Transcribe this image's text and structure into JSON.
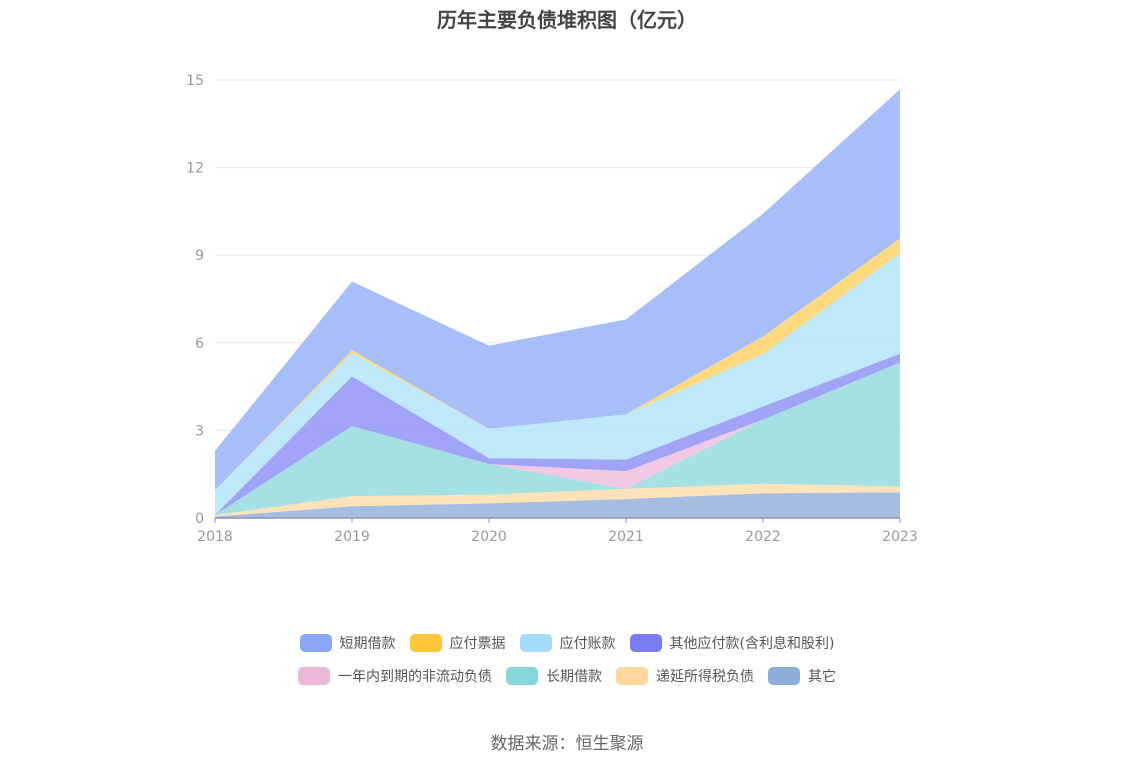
{
  "chart_data": {
    "type": "area",
    "stacked": true,
    "title": "历年主要负债堆积图（亿元）",
    "x": [
      "2018",
      "2019",
      "2020",
      "2021",
      "2022",
      "2023"
    ],
    "ylim": [
      0,
      15
    ],
    "yticks": [
      0,
      3,
      6,
      9,
      12,
      15
    ],
    "grid": true,
    "legend_position": "bottom",
    "series": [
      {
        "name": "其它",
        "color": "#8fadda",
        "values": [
          0.05,
          0.4,
          0.5,
          0.65,
          0.85,
          0.88
        ]
      },
      {
        "name": "递延所得税负债",
        "color": "#ffdba6",
        "values": [
          0.05,
          0.35,
          0.3,
          0.35,
          0.32,
          0.2
        ]
      },
      {
        "name": "长期借款",
        "color": "#8fdadc",
        "values": [
          0.0,
          2.4,
          1.05,
          0.0,
          2.2,
          4.25
        ]
      },
      {
        "name": "一年内到期的非流动负债",
        "color": "#eebcdc",
        "values": [
          0.0,
          0.0,
          0.0,
          0.6,
          0.0,
          0.0
        ]
      },
      {
        "name": "其他应付款(含利息和股利)",
        "color": "#8a8cf4",
        "values": [
          0.0,
          1.7,
          0.2,
          0.4,
          0.45,
          0.3
        ]
      },
      {
        "name": "应付账款",
        "color": "#ace3fa",
        "values": [
          0.85,
          0.8,
          1.0,
          1.55,
          1.8,
          3.45
        ]
      },
      {
        "name": "应付票据",
        "color": "#ffcf5c",
        "values": [
          0.0,
          0.1,
          0.0,
          0.0,
          0.6,
          0.5
        ]
      },
      {
        "name": "短期借款",
        "color": "#91aef9",
        "values": [
          1.35,
          2.35,
          2.85,
          3.25,
          4.2,
          5.1
        ]
      }
    ]
  },
  "legend": {
    "row1": [
      {
        "label": "短期借款",
        "color": "#8aa7f8"
      },
      {
        "label": "应付票据",
        "color": "#fcc53a"
      },
      {
        "label": "应付账款",
        "color": "#a4dcf9"
      },
      {
        "label": "其他应付款(含利息和股利)",
        "color": "#7a7cf2"
      }
    ],
    "row2": [
      {
        "label": "一年内到期的非流动负债",
        "color": "#ebb8da"
      },
      {
        "label": "长期借款",
        "color": "#85d7d9"
      },
      {
        "label": "递延所得税负债",
        "color": "#ffd79e"
      },
      {
        "label": "其它",
        "color": "#8eadda"
      }
    ]
  },
  "source": "数据来源：恒生聚源"
}
